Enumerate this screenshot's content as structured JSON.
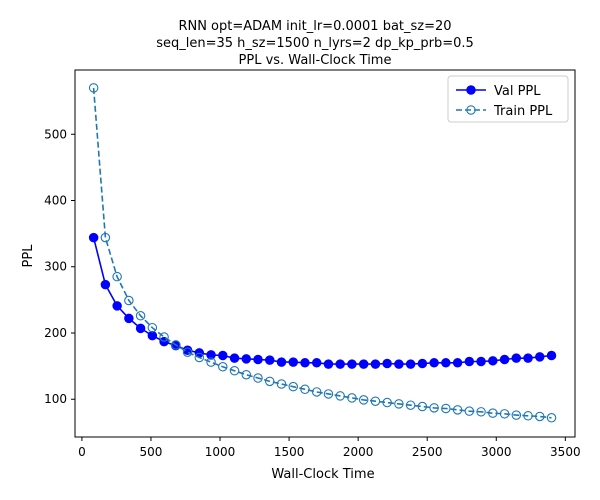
{
  "chart_data": {
    "type": "line",
    "title_lines": [
      "RNN opt=ADAM init_lr=0.0001 bat_sz=20",
      "seq_len=35 h_sz=1500 n_lyrs=2 dp_kp_prb=0.5",
      "PPL vs. Wall-Clock Time"
    ],
    "xlabel": "Wall-Clock Time",
    "ylabel": "PPL",
    "xlim": [
      -50,
      3570
    ],
    "ylim": [
      43,
      597
    ],
    "xticks": [
      0,
      500,
      1000,
      1500,
      2000,
      2500,
      3000,
      3500
    ],
    "yticks": [
      100,
      200,
      300,
      400,
      500
    ],
    "grid": false,
    "legend_position": "top-right",
    "x": [
      85,
      170,
      255,
      340,
      425,
      510,
      595,
      680,
      765,
      850,
      935,
      1020,
      1105,
      1190,
      1275,
      1360,
      1445,
      1530,
      1615,
      1700,
      1785,
      1870,
      1955,
      2040,
      2125,
      2210,
      2295,
      2380,
      2465,
      2550,
      2635,
      2720,
      2805,
      2890,
      2975,
      3060,
      3145,
      3230,
      3315,
      3400
    ],
    "series": [
      {
        "name": "Val PPL",
        "color": "#0000ff",
        "marker": "filled-circle",
        "linestyle": "solid",
        "values": [
          344,
          273,
          241,
          222,
          207,
          196,
          187,
          181,
          174,
          170,
          167,
          166,
          162,
          161,
          160,
          159,
          156,
          156,
          155,
          155,
          153,
          153,
          153,
          153,
          153,
          154,
          153,
          153,
          154,
          155,
          155,
          155,
          157,
          157,
          158,
          160,
          162,
          162,
          164,
          166
        ]
      },
      {
        "name": "Train PPL",
        "color": "#1f77b4",
        "marker": "open-circle",
        "linestyle": "dashed",
        "values": [
          570,
          344,
          285,
          249,
          226,
          208,
          194,
          182,
          171,
          163,
          156,
          149,
          143,
          137,
          132,
          127,
          123,
          119,
          115,
          111,
          108,
          105,
          102,
          99,
          97,
          95,
          93,
          91,
          89,
          87,
          86,
          84,
          82,
          81,
          79,
          78,
          76,
          75,
          74,
          72
        ]
      }
    ]
  }
}
